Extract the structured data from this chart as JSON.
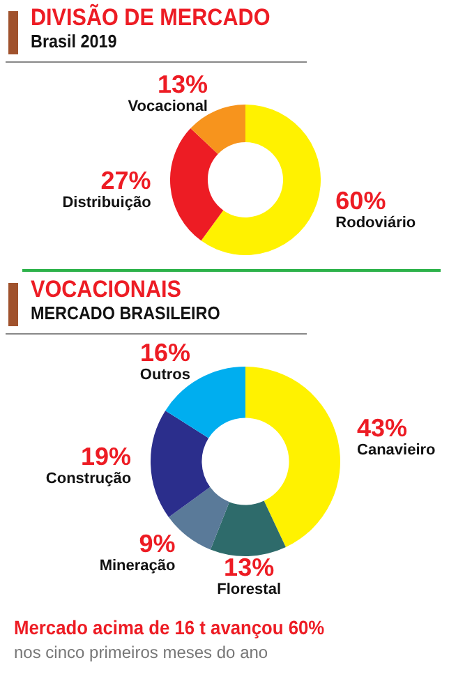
{
  "chart_data": [
    {
      "type": "donut",
      "title": "DIVISÃO DE MERCADO",
      "subtitle": "Brasil 2019",
      "categories": [
        "Rodoviário",
        "Distribuição",
        "Vocacional"
      ],
      "values": [
        60,
        27,
        13
      ],
      "value_labels": [
        "60%",
        "27%",
        "13%"
      ],
      "colors": [
        "#fff200",
        "#ed1c24",
        "#f7941d"
      ]
    },
    {
      "type": "donut",
      "title": "VOCACIONAIS",
      "subtitle": "MERCADO BRASILEIRO",
      "categories": [
        "Canavieiro",
        "Florestal",
        "Mineração",
        "Construção",
        "Outros"
      ],
      "values": [
        43,
        13,
        9,
        19,
        16
      ],
      "value_labels": [
        "43%",
        "13%",
        "9%",
        "19%",
        "16%"
      ],
      "colors": [
        "#fff200",
        "#2e6b6b",
        "#5a7a99",
        "#2b2e8c",
        "#00aeef"
      ],
      "annotations": [
        "Mercado acima de 16 t avançou 60%",
        "nos cinco primeiros meses do ano"
      ]
    }
  ]
}
